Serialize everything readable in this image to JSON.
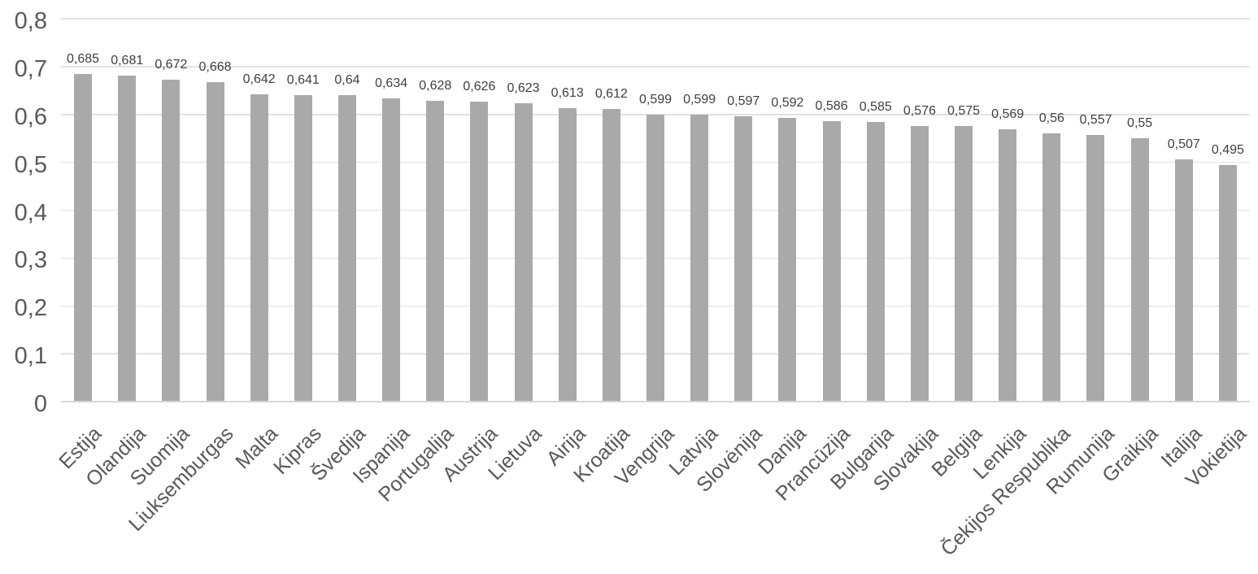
{
  "chart_data": {
    "type": "bar",
    "title": "",
    "xlabel": "",
    "ylabel": "",
    "categories": [
      "Estija",
      "Olandija",
      "Suomija",
      "Liuksemburgas",
      "Malta",
      "Kipras",
      "Švedija",
      "Ispanija",
      "Portugalija",
      "Austrija",
      "Lietuva",
      "Airija",
      "Kroatija",
      "Vengrija",
      "Latvija",
      "Slovėnija",
      "Danija",
      "Prancūzija",
      "Bulgarija",
      "Slovakija",
      "Belgija",
      "Lenkija",
      "Čekijos Respublika",
      "Rumunija",
      "Graikija",
      "Italija",
      "Vokietija"
    ],
    "values": [
      0.685,
      0.681,
      0.672,
      0.668,
      0.642,
      0.641,
      0.64,
      0.634,
      0.628,
      0.626,
      0.623,
      0.613,
      0.612,
      0.599,
      0.599,
      0.597,
      0.592,
      0.586,
      0.585,
      0.576,
      0.575,
      0.569,
      0.56,
      0.557,
      0.55,
      0.507,
      0.495
    ],
    "value_labels": [
      "0,685",
      "0,681",
      "0,672",
      "0,668",
      "0,642",
      "0,641",
      "0,64",
      "0,634",
      "0,628",
      "0,626",
      "0,623",
      "0,613",
      "0,612",
      "0,599",
      "0,599",
      "0,597",
      "0,592",
      "0,586",
      "0,585",
      "0,576",
      "0,575",
      "0,569",
      "0,56",
      "0,557",
      "0,55",
      "0,507",
      "0,495"
    ],
    "y_ticks": [
      0,
      0.1,
      0.2,
      0.3,
      0.4,
      0.5,
      0.6,
      0.7,
      0.8
    ],
    "y_tick_labels": [
      "0",
      "0,1",
      "0,2",
      "0,3",
      "0,4",
      "0,5",
      "0,6",
      "0,7",
      "0,8"
    ],
    "ylim": [
      0,
      0.8
    ],
    "grid": true,
    "legend_position": "none",
    "bar_color": "#A9A9A9",
    "value_label_color": "#404040",
    "axis_label_color": "#595959",
    "gridline_color": "#E2E2E2",
    "baseline_color": "#D6D6D6",
    "background_color": "#FFFFFF"
  }
}
